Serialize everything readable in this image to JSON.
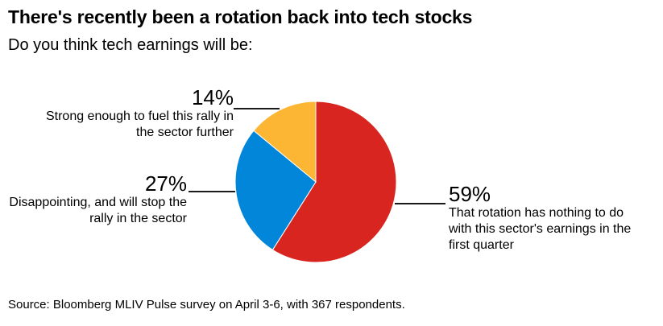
{
  "chart_data": {
    "type": "pie",
    "title": "There's recently been a rotation back into tech stocks",
    "subtitle": "Do you think tech earnings will be:",
    "unit": "%",
    "start_position": "top",
    "direction": "clockwise",
    "legend": "none",
    "slices": [
      {
        "label": "That rotation has nothing to do with this sector's earnings in the first quarter",
        "value": 59,
        "pct_label": "59%",
        "color": "#d9251f",
        "desc_lines": [
          "That rotation has nothing to do",
          "with this sector's earnings in the",
          "first quarter"
        ]
      },
      {
        "label": "Disappointing, and will stop the rally in the sector",
        "value": 27,
        "pct_label": "27%",
        "color": "#0286d9",
        "desc_lines": [
          "Disappointing, and will stop the",
          "rally in the sector"
        ]
      },
      {
        "label": "Strong enough to fuel this rally in the sector further",
        "value": 14,
        "pct_label": "14%",
        "color": "#fdb633",
        "desc_lines": [
          "Strong enough to fuel this rally in",
          "the sector further"
        ]
      }
    ]
  },
  "source": "Source: Bloomberg MLIV Pulse survey on April 3-6, with 367 respondents."
}
